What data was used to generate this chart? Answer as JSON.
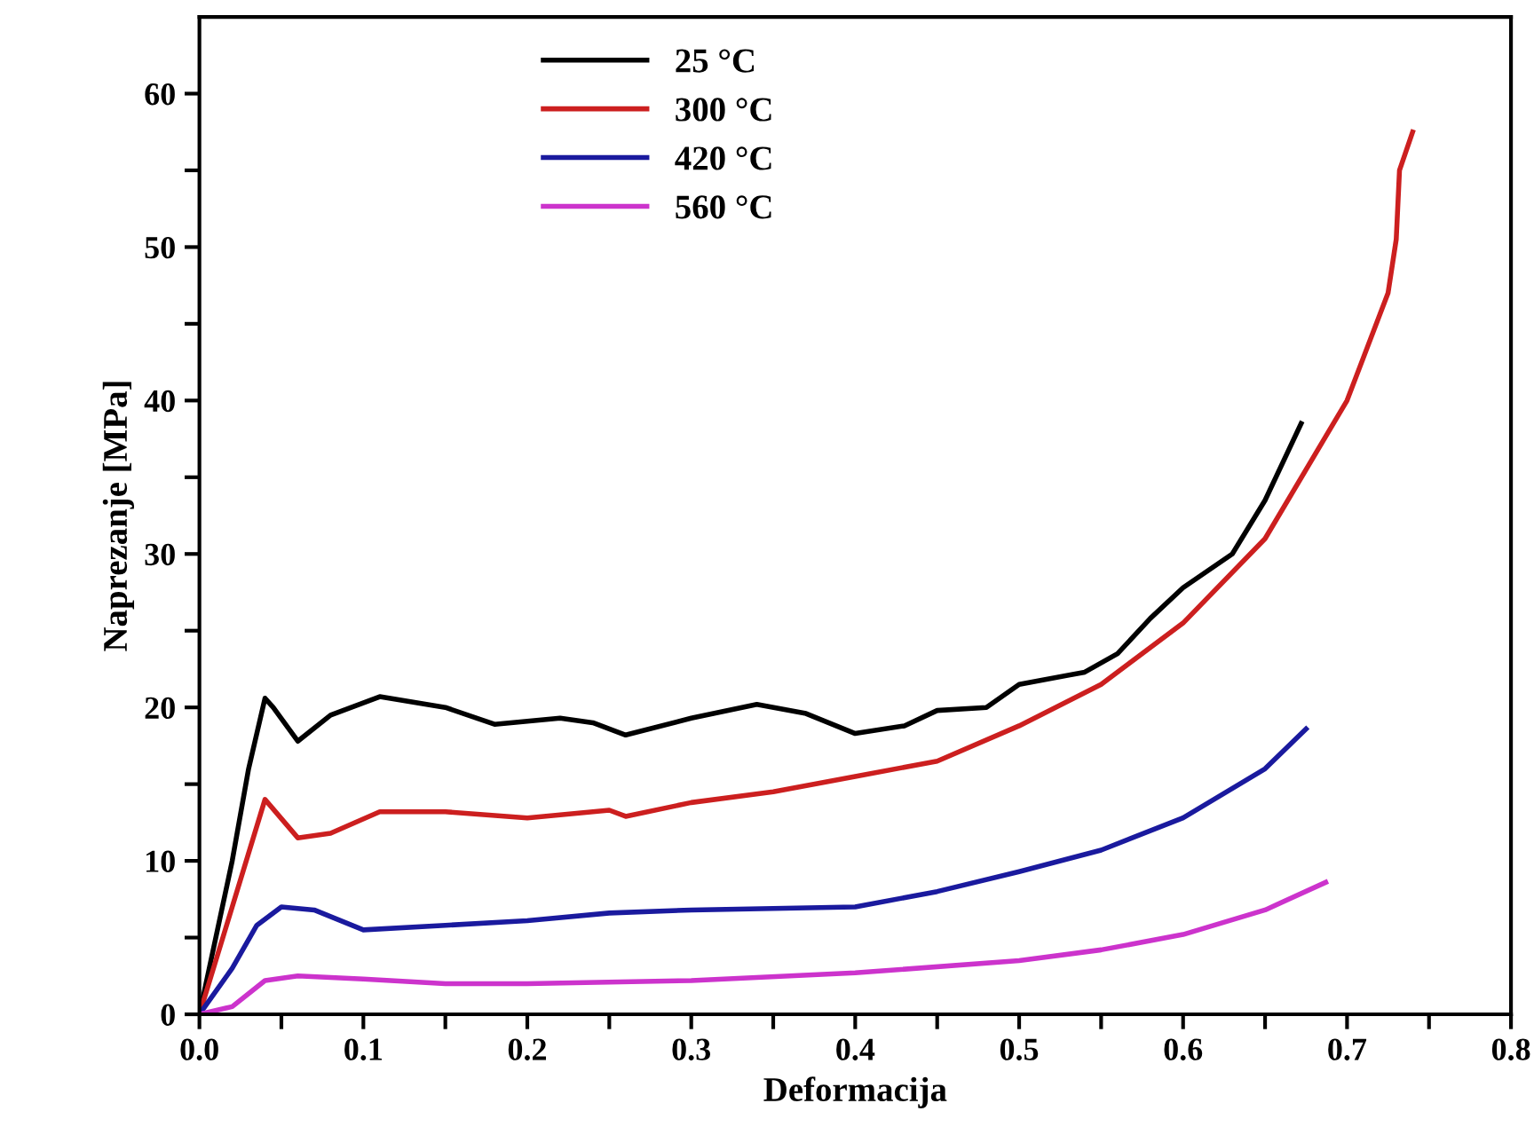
{
  "chart_data": {
    "type": "line",
    "xlabel": "Deformacija",
    "ylabel": "Naprezanje [MPa]",
    "xlim": [
      0,
      0.8
    ],
    "ylim": [
      0,
      65
    ],
    "xticks": [
      {
        "value": 0.0,
        "label": "0.0"
      },
      {
        "value": 0.05,
        "label": null
      },
      0.1,
      {
        "value": 0.15,
        "label": null
      },
      0.2,
      {
        "value": 0.25,
        "label": null
      },
      0.3,
      {
        "value": 0.35,
        "label": null
      },
      0.4,
      {
        "value": 0.45,
        "label": null
      },
      0.5,
      {
        "value": 0.55,
        "label": null
      },
      0.6,
      {
        "value": 0.65,
        "label": null
      },
      0.7,
      {
        "value": 0.75,
        "label": null
      },
      0.8
    ],
    "yticks": [
      0,
      {
        "value": 5,
        "label": null
      },
      10,
      {
        "value": 15,
        "label": null
      },
      20,
      {
        "value": 25,
        "label": null
      },
      30,
      {
        "value": 35,
        "label": null
      },
      40,
      {
        "value": 45,
        "label": null
      },
      50,
      {
        "value": 55,
        "label": null
      },
      60
    ],
    "grid": false,
    "legend": "top",
    "line_style": "solid",
    "marker": "none",
    "series": [
      {
        "name": "25 °C",
        "color": "#000000",
        "x": [
          0,
          0.02,
          0.03,
          0.04,
          0.045,
          0.06,
          0.08,
          0.11,
          0.15,
          0.18,
          0.22,
          0.24,
          0.26,
          0.3,
          0.34,
          0.37,
          0.4,
          0.43,
          0.45,
          0.48,
          0.5,
          0.54,
          0.56,
          0.58,
          0.6,
          0.63,
          0.65,
          0.672
        ],
        "values": [
          0,
          10,
          16,
          20.6,
          20,
          17.8,
          19.5,
          20.7,
          20,
          18.9,
          19.3,
          19,
          18.2,
          19.3,
          20.2,
          19.6,
          18.3,
          18.8,
          19.8,
          20,
          21.5,
          22.3,
          23.5,
          25.8,
          27.8,
          30,
          33.5,
          38.5
        ]
      },
      {
        "name": "300 °C",
        "color": "#cc1f1f",
        "x": [
          0,
          0.02,
          0.04,
          0.06,
          0.08,
          0.11,
          0.15,
          0.2,
          0.25,
          0.26,
          0.3,
          0.35,
          0.4,
          0.45,
          0.5,
          0.55,
          0.6,
          0.65,
          0.7,
          0.725,
          0.73,
          0.732,
          0.74
        ],
        "values": [
          0,
          7,
          14,
          11.5,
          11.8,
          13.2,
          13.2,
          12.8,
          13.3,
          12.9,
          13.8,
          14.5,
          15.5,
          16.5,
          18.8,
          21.5,
          25.5,
          31,
          40,
          47,
          50.5,
          55,
          57.5
        ]
      },
      {
        "name": "420 °C",
        "color": "#1a1a9e",
        "x": [
          0,
          0.02,
          0.035,
          0.05,
          0.07,
          0.1,
          0.15,
          0.2,
          0.25,
          0.3,
          0.4,
          0.45,
          0.5,
          0.55,
          0.6,
          0.65,
          0.675
        ],
        "values": [
          0,
          3,
          5.8,
          7,
          6.8,
          5.5,
          5.8,
          6.1,
          6.6,
          6.8,
          7,
          8,
          9.3,
          10.7,
          12.8,
          16,
          18.6
        ]
      },
      {
        "name": "560 °C",
        "color": "#cc33cc",
        "x": [
          0,
          0.02,
          0.04,
          0.06,
          0.1,
          0.15,
          0.2,
          0.3,
          0.4,
          0.5,
          0.55,
          0.6,
          0.65,
          0.687
        ],
        "values": [
          0,
          0.5,
          2.2,
          2.5,
          2.3,
          2,
          2,
          2.2,
          2.7,
          3.5,
          4.2,
          5.2,
          6.8,
          8.6
        ]
      }
    ]
  }
}
